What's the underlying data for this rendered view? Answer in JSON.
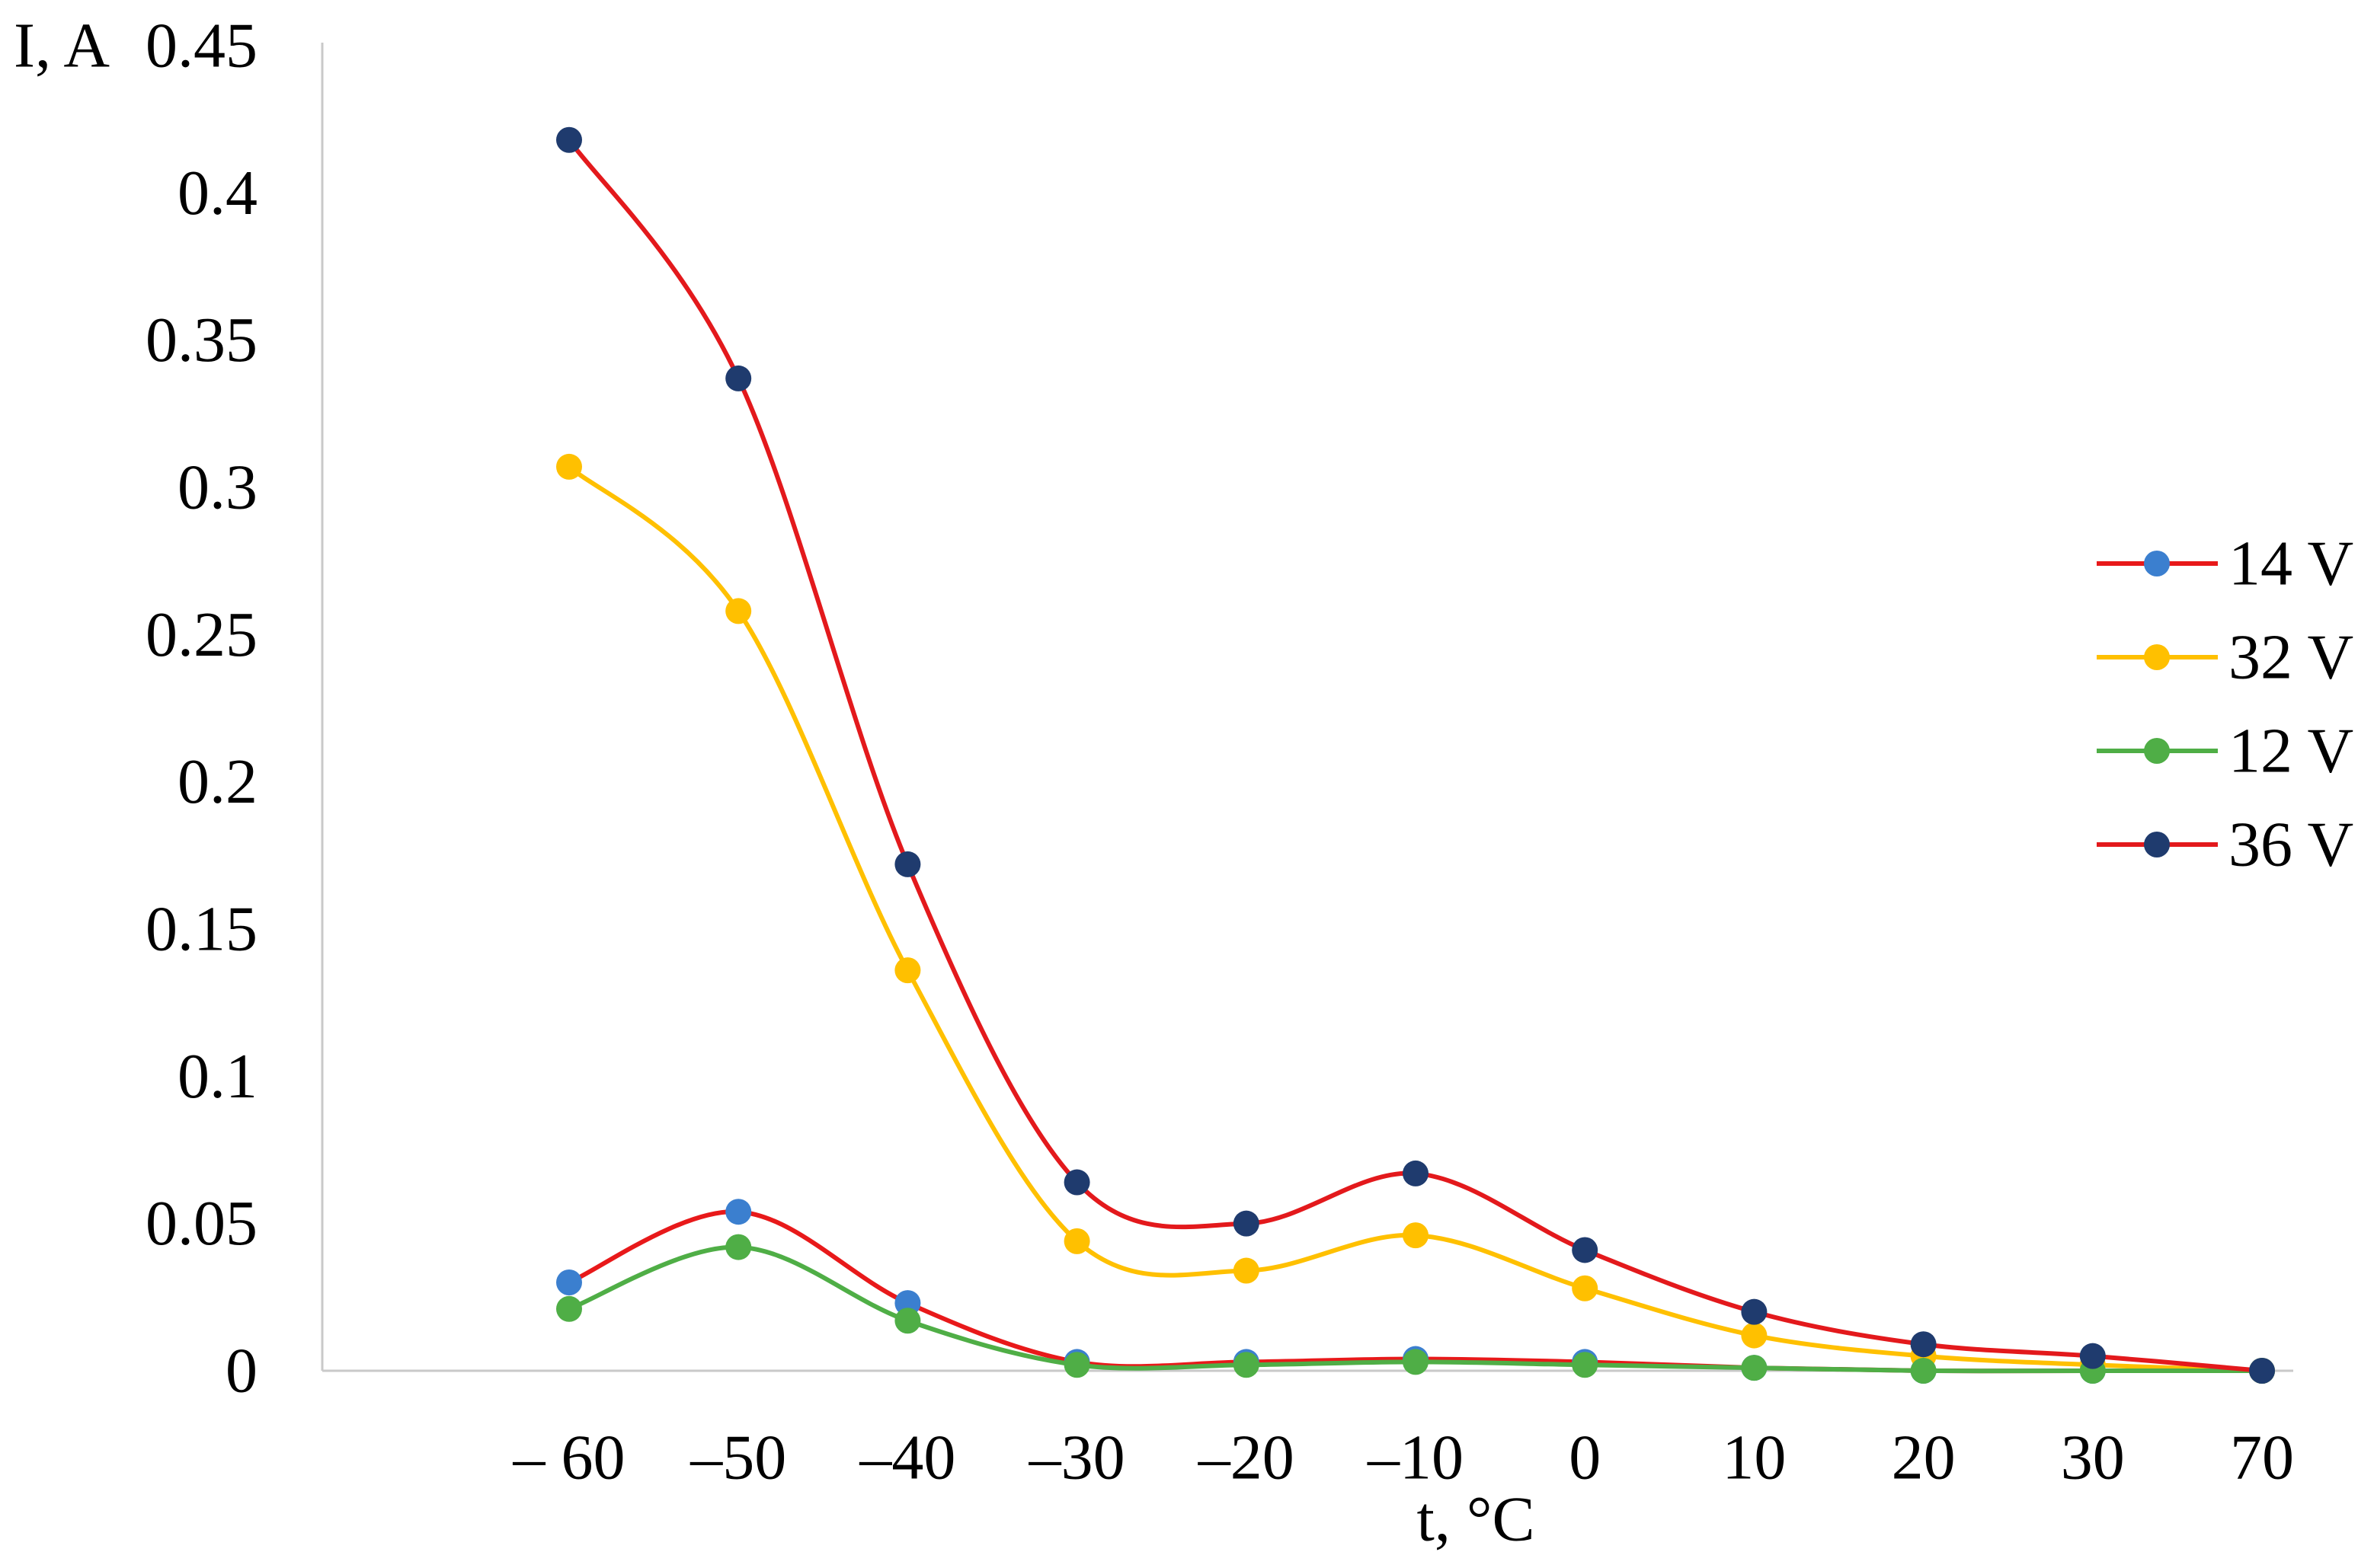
{
  "chart_data": {
    "type": "line",
    "smoothed": true,
    "xlabel": "t, °C",
    "ylabel": "I, A",
    "categories": [
      "– 60",
      "–50",
      "–40",
      "–30",
      "–20",
      "–10",
      "0",
      "10",
      "20",
      "30",
      "70"
    ],
    "ylim": [
      0,
      0.45
    ],
    "y_ticks": [
      0,
      0.05,
      0.1,
      0.15,
      0.2,
      0.25,
      0.3,
      0.35,
      0.4,
      0.45
    ],
    "y_tick_labels": [
      "0",
      "0.05",
      "0.1",
      "0.15",
      "0.2",
      "0.25",
      "0.3",
      "0.35",
      "0.4",
      "0.45"
    ],
    "grid": false,
    "legend_position": "right",
    "series": [
      {
        "name": "14 V",
        "line_color": "#e8191a",
        "marker_color": "#3b7fcf",
        "values": [
          0.03,
          0.054,
          0.023,
          0.003,
          0.003,
          0.004,
          0.003,
          0.001,
          0.0,
          0.0,
          0.0
        ]
      },
      {
        "name": "32 V",
        "line_color": "#ffc000",
        "marker_color": "#ffc000",
        "values": [
          0.307,
          0.258,
          0.136,
          0.044,
          0.034,
          0.046,
          0.028,
          0.012,
          0.005,
          0.002,
          0.0
        ]
      },
      {
        "name": "12 V",
        "line_color": "#4fae46",
        "marker_color": "#4fae46",
        "values": [
          0.021,
          0.042,
          0.017,
          0.002,
          0.002,
          0.003,
          0.002,
          0.001,
          0.0,
          0.0,
          0.0
        ]
      },
      {
        "name": "36 V",
        "line_color": "#e3191c",
        "marker_color": "#1f3b6e",
        "values": [
          0.418,
          0.337,
          0.172,
          0.064,
          0.05,
          0.067,
          0.041,
          0.02,
          0.009,
          0.005,
          0.0
        ]
      }
    ]
  }
}
